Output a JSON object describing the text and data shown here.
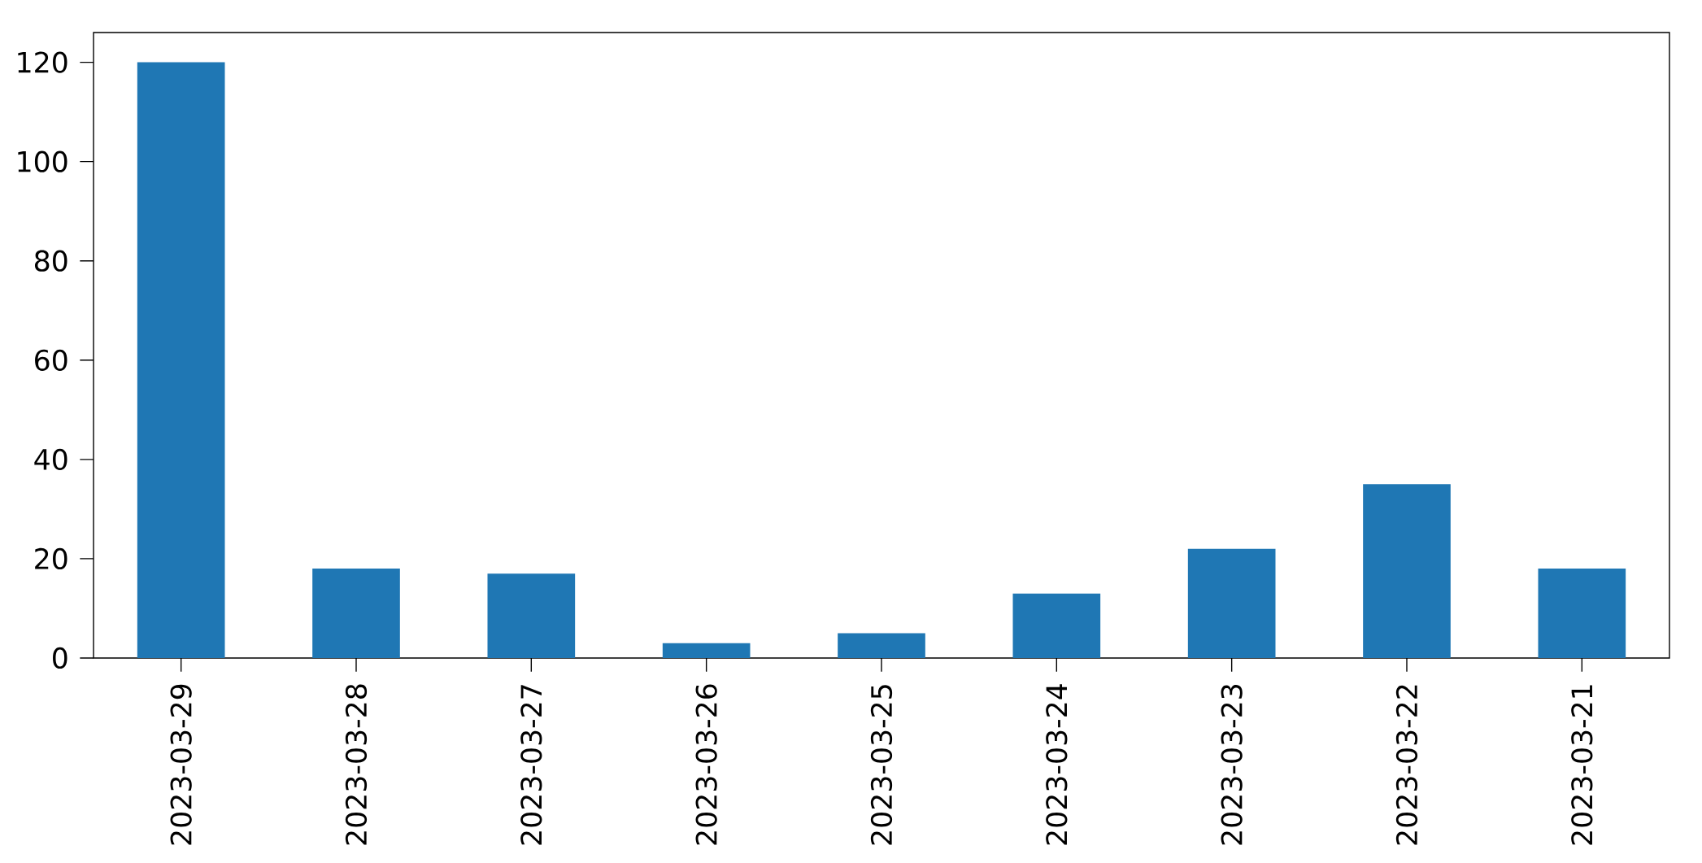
{
  "chart_data": {
    "type": "bar",
    "categories": [
      "2023-03-29",
      "2023-03-28",
      "2023-03-27",
      "2023-03-26",
      "2023-03-25",
      "2023-03-24",
      "2023-03-23",
      "2023-03-22",
      "2023-03-21"
    ],
    "values": [
      120,
      18,
      17,
      3,
      5,
      13,
      22,
      35,
      18
    ],
    "color": "#1f77b4",
    "ylim": [
      0,
      126
    ],
    "yticks": [
      0,
      20,
      40,
      60,
      80,
      100,
      120
    ]
  }
}
